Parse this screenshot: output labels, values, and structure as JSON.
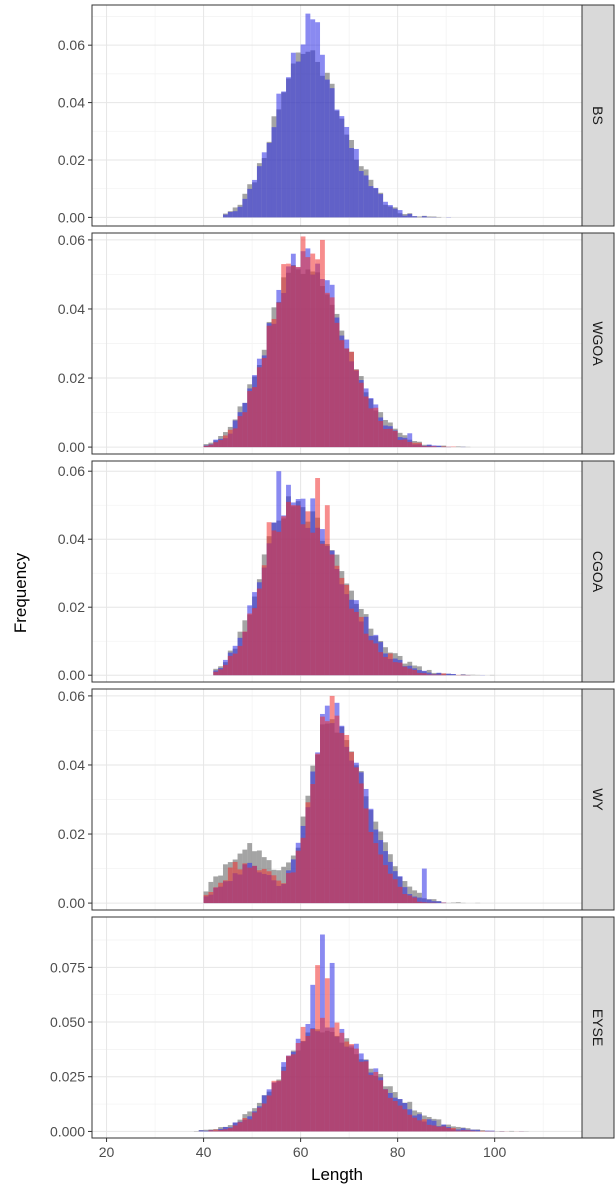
{
  "chart_data": {
    "type": "histogram",
    "layout": "facet-rows",
    "xlabel": "Length",
    "ylabel": "Frequency",
    "xlim": [
      17,
      118
    ],
    "x_ticks": [
      20,
      40,
      60,
      80,
      100
    ],
    "x_tick_labels": [
      "20",
      "40",
      "60",
      "80",
      "100"
    ],
    "grid": true,
    "legend": "none",
    "bin_width": 1,
    "series_colors": [
      "#595959",
      "#2a2ae6",
      "#f03030"
    ],
    "series_opacity": 0.55,
    "panels": [
      {
        "label": "BS",
        "ylim": [
          -0.003,
          0.074
        ],
        "y_ticks": [
          0,
          0.02,
          0.04,
          0.06
        ],
        "y_tick_labels": [
          "0.00",
          "0.02",
          "0.04",
          "0.06"
        ],
        "series": [
          {
            "shape": "skewnorm",
            "mean": 61,
            "sd_left": 6.2,
            "sd_right": 7.6,
            "peak": 0.058,
            "from": 44,
            "to": 108,
            "jitter": 0.004,
            "seed": 11
          },
          {
            "shape": "skewnorm",
            "mean": 61,
            "sd_left": 6.0,
            "sd_right": 7.4,
            "peak": 0.06,
            "from": 44,
            "to": 108,
            "jitter": 0.005,
            "seed": 12,
            "spikes": [
              [
                61,
                0.071
              ],
              [
                62,
                0.069
              ],
              [
                63,
                0.068
              ]
            ]
          }
        ]
      },
      {
        "label": "WGOA",
        "ylim": [
          -0.002,
          0.062
        ],
        "y_ticks": [
          0,
          0.02,
          0.04,
          0.06
        ],
        "y_tick_labels": [
          "0.00",
          "0.02",
          "0.04",
          "0.06"
        ],
        "series": [
          {
            "shape": "skewnorm",
            "mean": 60,
            "sd_left": 7.0,
            "sd_right": 9.0,
            "peak": 0.053,
            "from": 40,
            "to": 96,
            "jitter": 0.003,
            "seed": 21
          },
          {
            "shape": "skewnorm",
            "mean": 60,
            "sd_left": 6.6,
            "sd_right": 8.6,
            "peak": 0.055,
            "from": 40,
            "to": 96,
            "jitter": 0.004,
            "seed": 22,
            "spikes": [
              [
                58,
                0.056
              ],
              [
                66,
                0.047
              ],
              [
                82,
                0.004
              ]
            ]
          },
          {
            "shape": "skewnorm",
            "mean": 60,
            "sd_left": 6.4,
            "sd_right": 8.4,
            "peak": 0.056,
            "from": 40,
            "to": 96,
            "jitter": 0.004,
            "seed": 23,
            "spikes": [
              [
                60,
                0.061
              ],
              [
                64,
                0.06
              ],
              [
                56,
                0.053
              ]
            ]
          }
        ]
      },
      {
        "label": "CGOA",
        "ylim": [
          -0.002,
          0.063
        ],
        "y_ticks": [
          0,
          0.02,
          0.04,
          0.06
        ],
        "y_tick_labels": [
          "0.00",
          "0.02",
          "0.04",
          "0.06"
        ],
        "series": [
          {
            "shape": "skewnorm",
            "mean": 58,
            "sd_left": 6.2,
            "sd_right": 10.5,
            "peak": 0.05,
            "from": 42,
            "to": 100,
            "jitter": 0.003,
            "seed": 31
          },
          {
            "shape": "skewnorm",
            "mean": 58,
            "sd_left": 6.0,
            "sd_right": 10.0,
            "peak": 0.05,
            "from": 42,
            "to": 100,
            "jitter": 0.004,
            "seed": 32,
            "spikes": [
              [
                55,
                0.06
              ],
              [
                57,
                0.056
              ],
              [
                62,
                0.052
              ]
            ]
          },
          {
            "shape": "skewnorm",
            "mean": 58,
            "sd_left": 5.8,
            "sd_right": 9.8,
            "peak": 0.048,
            "from": 42,
            "to": 100,
            "jitter": 0.004,
            "seed": 33,
            "spikes": [
              [
                53,
                0.045
              ],
              [
                63,
                0.058
              ],
              [
                65,
                0.05
              ]
            ]
          }
        ]
      },
      {
        "label": "WY",
        "ylim": [
          -0.002,
          0.062
        ],
        "y_ticks": [
          0,
          0.02,
          0.04,
          0.06
        ],
        "y_tick_labels": [
          "0.00",
          "0.02",
          "0.04",
          "0.06"
        ],
        "series": [
          {
            "shape": "bimodal",
            "mean": 66,
            "sd_left": 4.2,
            "sd_right": 7.5,
            "peak": 0.053,
            "mean2": 49,
            "sd2": 5,
            "peak2": 0.016,
            "from": 40,
            "to": 106,
            "jitter": 0.003,
            "seed": 41
          },
          {
            "shape": "bimodal",
            "mean": 66,
            "sd_left": 4.0,
            "sd_right": 7.0,
            "peak": 0.055,
            "mean2": 49,
            "sd2": 5,
            "peak2": 0.01,
            "from": 40,
            "to": 106,
            "jitter": 0.004,
            "seed": 42,
            "spikes": [
              [
                67,
                0.058
              ],
              [
                85,
                0.01
              ]
            ]
          },
          {
            "shape": "bimodal",
            "mean": 66,
            "sd_left": 3.8,
            "sd_right": 6.4,
            "peak": 0.055,
            "mean2": 49,
            "sd2": 5,
            "peak2": 0.012,
            "from": 40,
            "to": 106,
            "jitter": 0.004,
            "seed": 43,
            "spikes": [
              [
                66,
                0.06
              ],
              [
                64,
                0.054
              ]
            ]
          }
        ]
      },
      {
        "label": "EYSE",
        "ylim": [
          -0.003,
          0.098
        ],
        "y_ticks": [
          0,
          0.025,
          0.05,
          0.075
        ],
        "y_tick_labels": [
          "0.000",
          "0.025",
          "0.050",
          "0.075"
        ],
        "series": [
          {
            "shape": "skewnorm",
            "mean": 64,
            "sd_left": 8.0,
            "sd_right": 11.5,
            "peak": 0.045,
            "from": 38,
            "to": 108,
            "jitter": 0.003,
            "seed": 51
          },
          {
            "shape": "skewnorm",
            "mean": 64,
            "sd_left": 7.5,
            "sd_right": 10.5,
            "peak": 0.048,
            "from": 38,
            "to": 108,
            "jitter": 0.004,
            "seed": 52,
            "spikes": [
              [
                64,
                0.09
              ],
              [
                66,
                0.077
              ],
              [
                62,
                0.067
              ]
            ]
          },
          {
            "shape": "skewnorm",
            "mean": 64,
            "sd_left": 7.3,
            "sd_right": 10.0,
            "peak": 0.05,
            "from": 38,
            "to": 108,
            "jitter": 0.004,
            "seed": 53,
            "spikes": [
              [
                63,
                0.076
              ],
              [
                65,
                0.07
              ]
            ]
          }
        ]
      }
    ]
  }
}
